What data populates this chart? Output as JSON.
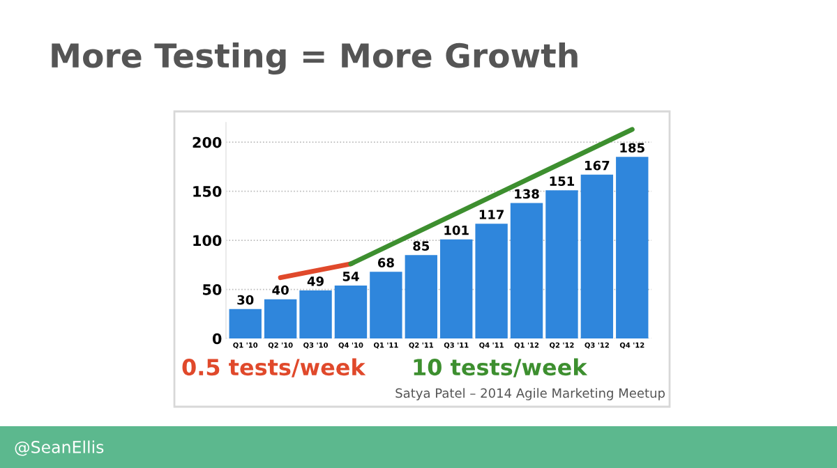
{
  "chart_data": {
    "type": "bar",
    "title": "More Testing = More Growth",
    "categories": [
      "Q1 '10",
      "Q2 '10",
      "Q3 '10",
      "Q4 '10",
      "Q1 '11",
      "Q2 '11",
      "Q3 '11",
      "Q4 '11",
      "Q1 '12",
      "Q2 '12",
      "Q3 '12",
      "Q4 '12"
    ],
    "series": [
      {
        "color": "#2f86dc",
        "values": [
          30,
          40,
          49,
          54,
          68,
          85,
          101,
          117,
          138,
          151,
          167,
          185
        ],
        "value_labels": [
          "30",
          "40",
          "49",
          "54",
          "68",
          "85",
          "101",
          "117",
          "138",
          "151",
          "167",
          "185"
        ]
      },
      {
        "type": "line",
        "name": "0.5 tests/week",
        "color": "#e0492b",
        "x": [
          "Q2 '10",
          "Q4 '10"
        ],
        "values": [
          62,
          76
        ]
      },
      {
        "type": "line",
        "name": "10 tests/week",
        "color": "#3d8f2f",
        "x": [
          "Q4 '10",
          "Q4 '12"
        ],
        "values": [
          76,
          213
        ]
      }
    ],
    "ylim": [
      0,
      220
    ],
    "yticks": [
      0,
      50,
      100,
      150,
      200
    ],
    "grid": "y",
    "annotations": [
      "Satya Patel – 2014 Agile Marketing Meetup",
      "@SeanEllis"
    ]
  }
}
